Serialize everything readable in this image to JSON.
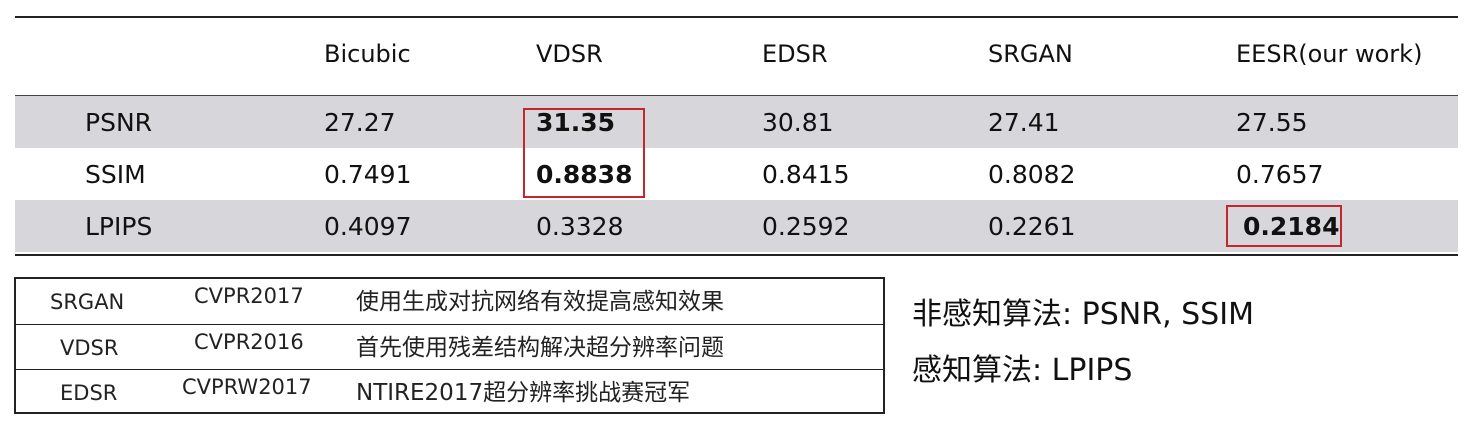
{
  "results_table": {
    "columns": [
      "",
      "Bicubic",
      "VDSR",
      "EDSR",
      "SRGAN",
      "EESR(our work)"
    ],
    "rows": [
      {
        "metric": "PSNR",
        "values": [
          "27.27",
          "31.35",
          "30.81",
          "27.41",
          "27.55"
        ]
      },
      {
        "metric": "SSIM",
        "values": [
          "0.7491",
          "0.8838",
          "0.8415",
          "0.8082",
          "0.7657"
        ]
      },
      {
        "metric": "LPIPS",
        "values": [
          "0.4097",
          "0.3328",
          "0.2592",
          "0.2261",
          "0.2184"
        ]
      }
    ],
    "highlighted": [
      {
        "metric": "PSNR",
        "method": "VDSR"
      },
      {
        "metric": "SSIM",
        "method": "VDSR"
      },
      {
        "metric": "LPIPS",
        "method": "EESR(our work)"
      }
    ],
    "row_shading": "#d6d6db",
    "highlight_color": "#c0282e"
  },
  "notes_table": {
    "rows": [
      {
        "name": "SRGAN",
        "venue": "CVPR2017",
        "desc": "使用生成对抗网络有效提高感知效果"
      },
      {
        "name": "VDSR",
        "venue": "CVPR2016",
        "desc": "首先使用残差结构解决超分辨率问题"
      },
      {
        "name": "EDSR",
        "venue": "CVPRW2017",
        "desc": "NTIRE2017超分辨率挑战赛冠军"
      }
    ]
  },
  "legend": {
    "lines": [
      "非感知算法: PSNR, SSIM",
      "感知算法: LPIPS"
    ]
  }
}
